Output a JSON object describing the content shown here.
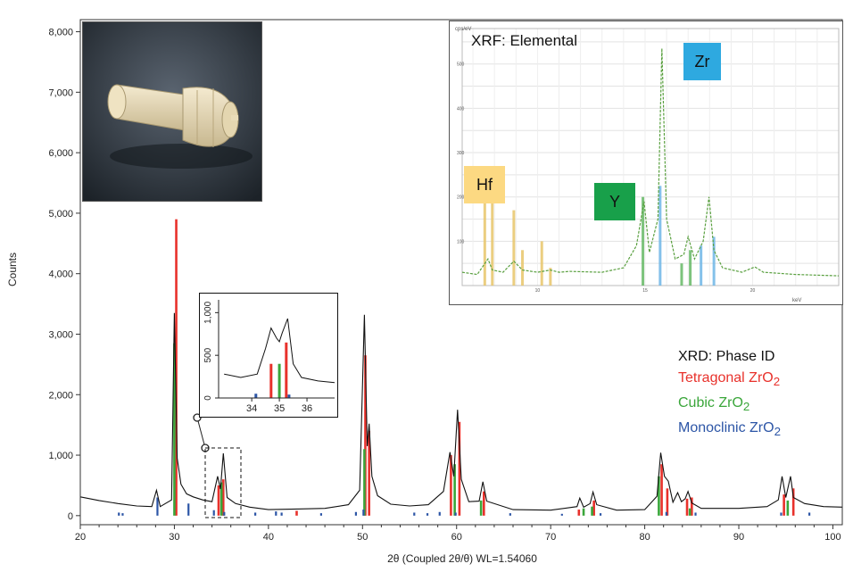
{
  "chart_data": [
    {
      "type": "line",
      "title": "",
      "xlabel": "2θ (Coupled 2θ/θ) WL=1.54060",
      "ylabel": "Counts",
      "xlim": [
        20,
        101
      ],
      "ylim": [
        -150,
        8200
      ],
      "x_ticks": [
        20,
        30,
        40,
        50,
        60,
        70,
        80,
        90,
        100
      ],
      "y_ticks": [
        0,
        1000,
        2000,
        3000,
        4000,
        5000,
        6000,
        7000,
        8000
      ],
      "y_tick_labels": [
        "0",
        "1,000",
        "2,000",
        "3,000",
        "4,000",
        "5,000",
        "6,000",
        "7,000",
        "8,000"
      ],
      "series": [
        {
          "name": "",
          "points": [
            [
              20,
              310
            ],
            [
              22,
              250
            ],
            [
              24,
              200
            ],
            [
              26,
              160
            ],
            [
              27.6,
              150
            ],
            [
              28.1,
              420
            ],
            [
              28.5,
              150
            ],
            [
              29.7,
              260
            ],
            [
              30.0,
              3350
            ],
            [
              30.3,
              950
            ],
            [
              30.7,
              520
            ],
            [
              31.3,
              360
            ],
            [
              32,
              310
            ],
            [
              33,
              260
            ],
            [
              34.0,
              230
            ],
            [
              34.6,
              650
            ],
            [
              34.9,
              440
            ],
            [
              35.2,
              1030
            ],
            [
              35.6,
              300
            ],
            [
              36.5,
              200
            ],
            [
              38,
              140
            ],
            [
              40,
              100
            ],
            [
              43,
              110
            ],
            [
              46,
              120
            ],
            [
              48.5,
              180
            ],
            [
              49.7,
              420
            ],
            [
              50.2,
              3320
            ],
            [
              50.5,
              1150
            ],
            [
              50.7,
              1520
            ],
            [
              51.0,
              650
            ],
            [
              51.6,
              330
            ],
            [
              53,
              190
            ],
            [
              55,
              160
            ],
            [
              57,
              180
            ],
            [
              58.6,
              400
            ],
            [
              59.3,
              1050
            ],
            [
              59.7,
              650
            ],
            [
              60.1,
              1750
            ],
            [
              60.5,
              600
            ],
            [
              61.3,
              230
            ],
            [
              62.4,
              240
            ],
            [
              62.8,
              560
            ],
            [
              63.2,
              240
            ],
            [
              66,
              100
            ],
            [
              70,
              90
            ],
            [
              72.8,
              150
            ],
            [
              73.1,
              290
            ],
            [
              73.5,
              140
            ],
            [
              74.2,
              200
            ],
            [
              74.5,
              390
            ],
            [
              74.9,
              180
            ],
            [
              77,
              90
            ],
            [
              80,
              100
            ],
            [
              81.3,
              320
            ],
            [
              81.7,
              1040
            ],
            [
              82.1,
              650
            ],
            [
              82.5,
              570
            ],
            [
              83.0,
              220
            ],
            [
              83.5,
              380
            ],
            [
              83.9,
              230
            ],
            [
              84.3,
              280
            ],
            [
              84.6,
              400
            ],
            [
              85.0,
              210
            ],
            [
              86,
              120
            ],
            [
              90,
              120
            ],
            [
              93,
              150
            ],
            [
              94.2,
              260
            ],
            [
              94.6,
              650
            ],
            [
              95.0,
              300
            ],
            [
              95.5,
              650
            ],
            [
              95.8,
              300
            ],
            [
              97,
              200
            ],
            [
              99,
              150
            ],
            [
              101,
              140
            ]
          ]
        }
      ],
      "reference_lines": [
        {
          "name": "Tetragonal ZrO2",
          "color": "#e8312b",
          "positions": [
            [
              30.2,
              4900
            ],
            [
              34.7,
              500
            ],
            [
              35.2,
              600
            ],
            [
              43.0,
              80
            ],
            [
              50.3,
              2650
            ],
            [
              50.7,
              1400
            ],
            [
              59.4,
              1000
            ],
            [
              60.3,
              1550
            ],
            [
              62.9,
              400
            ],
            [
              73.0,
              100
            ],
            [
              74.6,
              250
            ],
            [
              81.8,
              850
            ],
            [
              82.4,
              450
            ],
            [
              84.5,
              280
            ],
            [
              85.0,
              300
            ],
            [
              94.8,
              350
            ],
            [
              95.8,
              450
            ]
          ]
        },
        {
          "name": "Cubic ZrO2",
          "color": "#3aa63a",
          "positions": [
            [
              30.0,
              2850
            ],
            [
              35.0,
              550
            ],
            [
              50.2,
              1100
            ],
            [
              59.8,
              850
            ],
            [
              62.6,
              250
            ],
            [
              73.5,
              120
            ],
            [
              74.4,
              150
            ],
            [
              81.5,
              650
            ],
            [
              84.8,
              120
            ],
            [
              95.2,
              250
            ]
          ]
        },
        {
          "name": "Monoclinic ZrO2",
          "color": "#2c55a6",
          "positions": [
            [
              24.1,
              50
            ],
            [
              24.5,
              40
            ],
            [
              28.2,
              300
            ],
            [
              31.5,
              200
            ],
            [
              34.2,
              90
            ],
            [
              35.3,
              60
            ],
            [
              38.6,
              50
            ],
            [
              40.8,
              70
            ],
            [
              41.4,
              50
            ],
            [
              45.6,
              40
            ],
            [
              49.3,
              60
            ],
            [
              50.1,
              100
            ],
            [
              55.5,
              50
            ],
            [
              56.9,
              40
            ],
            [
              58.2,
              60
            ],
            [
              59.9,
              50
            ],
            [
              65.7,
              40
            ],
            [
              71.2,
              30
            ],
            [
              75.3,
              40
            ],
            [
              82.3,
              60
            ],
            [
              85.4,
              50
            ],
            [
              94.5,
              50
            ],
            [
              97.5,
              50
            ]
          ]
        }
      ]
    },
    {
      "type": "line",
      "title": "",
      "xlim": [
        32.8,
        37.0
      ],
      "ylim": [
        0,
        1150
      ],
      "x_ticks": [
        34,
        35,
        36
      ],
      "y_ticks": [
        0,
        500,
        1000
      ],
      "y_tick_labels": [
        "0",
        "500",
        "1,000"
      ],
      "series": [
        {
          "name": "",
          "points": [
            [
              33.0,
              280
            ],
            [
              33.6,
              240
            ],
            [
              34.2,
              280
            ],
            [
              34.5,
              580
            ],
            [
              34.7,
              820
            ],
            [
              34.9,
              700
            ],
            [
              35.0,
              660
            ],
            [
              35.1,
              760
            ],
            [
              35.3,
              930
            ],
            [
              35.5,
              400
            ],
            [
              35.8,
              240
            ],
            [
              36.4,
              200
            ],
            [
              37.0,
              180
            ]
          ]
        }
      ],
      "reference_lines": [
        {
          "name": "Tetragonal ZrO2",
          "color": "#e8312b",
          "positions": [
            [
              34.7,
              400
            ],
            [
              35.25,
              650
            ]
          ]
        },
        {
          "name": "Cubic ZrO2",
          "color": "#3aa63a",
          "positions": [
            [
              35.0,
              400
            ]
          ]
        },
        {
          "name": "Monoclinic ZrO2",
          "color": "#2c55a6",
          "positions": [
            [
              34.15,
              50
            ],
            [
              35.35,
              40
            ]
          ]
        }
      ]
    },
    {
      "type": "line",
      "title": "XRF: Elemental",
      "xlabel": "keV",
      "ylabel": "cps/eV",
      "xlim": [
        6.5,
        24.0
      ],
      "ylim": [
        0,
        580
      ],
      "x_ticks": [
        10,
        15,
        20
      ],
      "y_ticks": [
        100,
        200,
        300,
        400,
        500
      ],
      "series": [
        {
          "name": "",
          "points": [
            [
              6.5,
              30
            ],
            [
              7.2,
              25
            ],
            [
              7.7,
              60
            ],
            [
              7.9,
              35
            ],
            [
              8.4,
              30
            ],
            [
              8.9,
              55
            ],
            [
              9.3,
              35
            ],
            [
              10.0,
              30
            ],
            [
              10.6,
              35
            ],
            [
              11.0,
              30
            ],
            [
              11.5,
              32
            ],
            [
              13.0,
              30
            ],
            [
              14.0,
              40
            ],
            [
              14.6,
              90
            ],
            [
              14.95,
              190
            ],
            [
              15.2,
              75
            ],
            [
              15.6,
              150
            ],
            [
              15.78,
              535
            ],
            [
              16.0,
              150
            ],
            [
              16.4,
              60
            ],
            [
              16.8,
              70
            ],
            [
              17.0,
              110
            ],
            [
              17.3,
              60
            ],
            [
              17.7,
              100
            ],
            [
              17.97,
              200
            ],
            [
              18.2,
              80
            ],
            [
              18.6,
              40
            ],
            [
              19.5,
              30
            ],
            [
              20.1,
              42
            ],
            [
              20.5,
              30
            ],
            [
              22.0,
              25
            ],
            [
              24.0,
              22
            ]
          ]
        }
      ],
      "element_lines": [
        {
          "element": "Hf",
          "color": "#e8c66a",
          "positions": [
            [
              7.55,
              240
            ],
            [
              7.9,
              210
            ],
            [
              8.9,
              170
            ],
            [
              9.3,
              80
            ],
            [
              10.2,
              100
            ],
            [
              10.6,
              40
            ]
          ]
        },
        {
          "element": "Y",
          "color": "#66b966",
          "positions": [
            [
              14.9,
              200
            ],
            [
              16.7,
              50
            ],
            [
              17.1,
              80
            ]
          ]
        },
        {
          "element": "Zr",
          "color": "#6fb6e6",
          "positions": [
            [
              15.7,
              225
            ],
            [
              17.6,
              90
            ],
            [
              18.2,
              110
            ]
          ]
        }
      ],
      "annotations": {
        "hf": {
          "text": "Hf",
          "color": "#fcd982"
        },
        "y": {
          "text": "Y",
          "color": "#18a04a"
        },
        "zr": {
          "text": "Zr",
          "color": "#2ea9e0"
        }
      }
    }
  ],
  "legend": {
    "title": "XRD: Phase ID",
    "items": [
      {
        "name": "Tetragonal ZrO",
        "sub": "2",
        "color": "#e8312b"
      },
      {
        "name": "Cubic ZrO",
        "sub": "2",
        "color": "#3aa63a"
      },
      {
        "name": "Monoclinic ZrO",
        "sub": "2",
        "color": "#2c55a6"
      }
    ]
  }
}
